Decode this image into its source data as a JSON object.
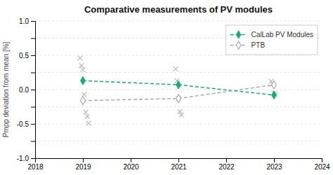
{
  "chart_data": {
    "type": "line",
    "title": "Comparative measurements of PV modules",
    "ylabel": "Pmpp deviation from mean [%]",
    "xlim": [
      2018,
      2024
    ],
    "ylim": [
      -1.0,
      1.0
    ],
    "xticks": [
      2018,
      2019,
      2020,
      2021,
      2022,
      2023,
      2024
    ],
    "yticks": [
      {
        "value": -1.0,
        "label": "-1.0"
      },
      {
        "value": -0.75,
        "label": null
      },
      -0.5,
      {
        "value": -0.25,
        "label": null
      },
      {
        "value": 0.0,
        "label": "0.0"
      },
      {
        "value": 0.25,
        "label": null
      },
      0.5,
      {
        "value": 0.75,
        "label": null
      },
      {
        "value": 1.0,
        "label": "1.0"
      }
    ],
    "grid": true,
    "legend": "upper right",
    "series": [
      {
        "type": "scatter",
        "marker": "x",
        "color": "#bbbbbb",
        "x": [
          2018.94,
          2018.97,
          2019.0,
          2019.03,
          2019.06,
          2019.09,
          2019.12,
          2020.94,
          2020.97,
          2021.0,
          2021.03,
          2021.06,
          2022.94,
          2022.97,
          2023.0,
          2023.03
        ],
        "values": [
          0.46,
          0.35,
          0.29,
          -0.07,
          -0.33,
          -0.39,
          -0.49,
          0.3,
          0.13,
          -0.13,
          -0.32,
          -0.37,
          0.12,
          0.08,
          -0.05,
          -0.07
        ]
      },
      {
        "type": "line",
        "name": "CalLab PV Modules",
        "color": "#1aaa82",
        "line_style": "dashed",
        "marker": "diamond",
        "x": [
          2019,
          2021,
          2023
        ],
        "values": [
          0.13,
          0.07,
          -0.08
        ]
      },
      {
        "type": "line",
        "name": "PTB",
        "color": "#aaaaaa",
        "line_style": "dashed",
        "marker": "diamond-open",
        "x": [
          2019,
          2021,
          2023
        ],
        "values": [
          -0.16,
          -0.13,
          0.07
        ]
      }
    ]
  }
}
